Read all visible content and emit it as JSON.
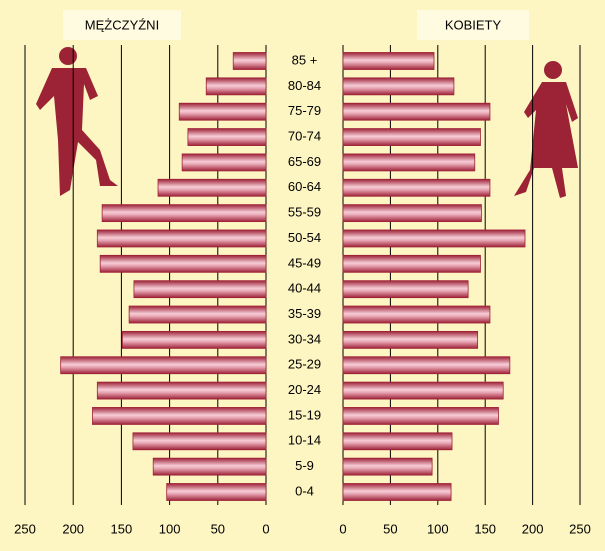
{
  "chart_data": {
    "type": "pyramid",
    "categories": [
      "85 +",
      "80-84",
      "75-79",
      "70-74",
      "65-69",
      "60-64",
      "55-59",
      "50-54",
      "45-49",
      "40-44",
      "35-39",
      "30-34",
      "25-29",
      "20-24",
      "15-19",
      "10-14",
      "5-9",
      "0-4"
    ],
    "series": [
      {
        "name": "MĘŻCZYŹNI",
        "color": "#9e2238",
        "values": [
          34,
          62,
          90,
          81,
          87,
          112,
          170,
          175,
          172,
          137,
          142,
          149,
          213,
          175,
          180,
          138,
          117,
          103
        ]
      },
      {
        "name": "KOBIETY",
        "color": "#9e2238",
        "values": [
          96,
          117,
          155,
          145,
          139,
          155,
          146,
          192,
          145,
          132,
          155,
          142,
          176,
          169,
          164,
          115,
          94,
          114
        ]
      }
    ],
    "xlim": [
      0,
      250
    ],
    "xticks": [
      0,
      50,
      100,
      150,
      200,
      250
    ],
    "grid": true
  }
}
